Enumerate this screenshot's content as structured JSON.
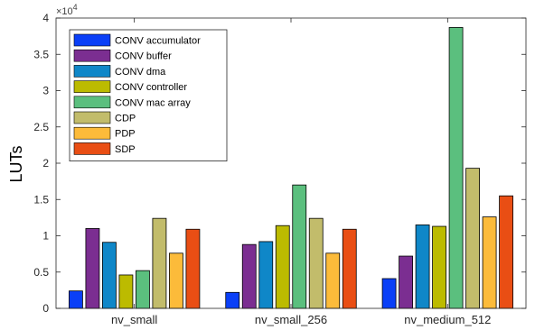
{
  "chart_data": {
    "type": "bar",
    "title": "",
    "xlabel": "",
    "ylabel": "LUTs",
    "y_exponent_label": "×10^4",
    "ylim": [
      0,
      40000
    ],
    "y_ticks": [
      0,
      5000,
      10000,
      15000,
      20000,
      25000,
      30000,
      35000,
      40000
    ],
    "y_tick_labels": [
      "0",
      "0.5",
      "1",
      "1.5",
      "2",
      "2.5",
      "3",
      "3.5",
      "4"
    ],
    "categories": [
      "nv_small",
      "nv_small_256",
      "nv_medium_512"
    ],
    "grid": false,
    "legend_position": "top-left",
    "series": [
      {
        "name": "CONV accumulator",
        "color": "#0a3ff7",
        "values": [
          2400,
          2200,
          4100
        ]
      },
      {
        "name": "CONV buffer",
        "color": "#7b2e91",
        "values": [
          11000,
          8800,
          7200
        ]
      },
      {
        "name": "CONV dma",
        "color": "#0f87c8",
        "values": [
          9100,
          9200,
          11500
        ]
      },
      {
        "name": "CONV controller",
        "color": "#bcbb00",
        "values": [
          4600,
          11400,
          11300
        ]
      },
      {
        "name": "CONV mac array",
        "color": "#5bbf7e",
        "values": [
          5200,
          17000,
          38700
        ]
      },
      {
        "name": "CDP",
        "color": "#c2bc6b",
        "values": [
          12400,
          12400,
          19300
        ]
      },
      {
        "name": "PDP",
        "color": "#fcbb3a",
        "values": [
          7600,
          7600,
          12600
        ]
      },
      {
        "name": "SDP",
        "color": "#e94e14",
        "values": [
          10900,
          10900,
          15500
        ]
      }
    ]
  }
}
